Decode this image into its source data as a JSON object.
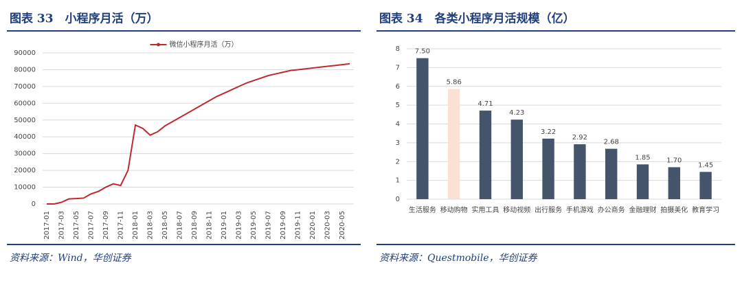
{
  "chart_data": [
    {
      "type": "line",
      "title": "图表 33　小程序月活（万）",
      "source": "资料来源：Wind，华创证券",
      "categories": [
        "2017-01",
        null,
        "2017-03",
        null,
        "2017-05",
        null,
        "2017-07",
        null,
        "2017-09",
        null,
        "2017-11",
        null,
        "2018-01",
        null,
        "2018-03",
        null,
        "2018-05",
        null,
        "2018-07",
        null,
        "2018-09",
        null,
        "2018-11",
        null,
        "2019-01",
        null,
        "2019-03",
        null,
        "2019-05",
        null,
        "2019-07",
        null,
        "2019-09",
        null,
        "2019-11",
        null,
        "2020-01",
        null,
        "2020-03",
        null,
        "2020-05",
        null
      ],
      "series": [
        {
          "name": "微信小程序月活（万）",
          "color": "#c0282d",
          "values": [
            0,
            0,
            1000,
            3000,
            3200,
            3500,
            6000,
            7500,
            10000,
            12000,
            11000,
            20000,
            47000,
            45000,
            41000,
            43000,
            46500,
            49000,
            51500,
            54000,
            56500,
            59000,
            61500,
            64000,
            66000,
            68000,
            70000,
            72000,
            73500,
            75000,
            76500,
            77500,
            78500,
            79500,
            80000,
            80500,
            81000,
            81500,
            82000,
            82500,
            83000,
            83500
          ]
        }
      ],
      "ylim": [
        0,
        90000
      ],
      "yticks": [
        0,
        10000,
        20000,
        30000,
        40000,
        50000,
        60000,
        70000,
        80000,
        90000
      ],
      "grid": true
    },
    {
      "type": "bar",
      "title": "图表 34　各类小程序月活规模（亿）",
      "source": "资料来源：Questmobile，华创证券",
      "categories": [
        "生活服务",
        "移动购物",
        "实用工具",
        "移动视频",
        "出行服务",
        "手机游戏",
        "办公商务",
        "金融理财",
        "拍摄美化",
        "教育学习"
      ],
      "values": [
        7.5,
        5.86,
        4.71,
        4.23,
        3.22,
        2.92,
        2.68,
        1.85,
        1.7,
        1.45
      ],
      "value_labels": [
        "7.50",
        "5.86",
        "4.71",
        "4.23",
        "3.22",
        "2.92",
        "2.68",
        "1.85",
        "1.70",
        "1.45"
      ],
      "colors": [
        "#44546a",
        "#fbe1d3",
        "#44546a",
        "#44546a",
        "#44546a",
        "#44546a",
        "#44546a",
        "#44546a",
        "#44546a",
        "#44546a"
      ],
      "ylim": [
        0,
        8
      ],
      "yticks": [
        0,
        1,
        2,
        3,
        4,
        5,
        6,
        7,
        8
      ],
      "grid": true
    }
  ]
}
